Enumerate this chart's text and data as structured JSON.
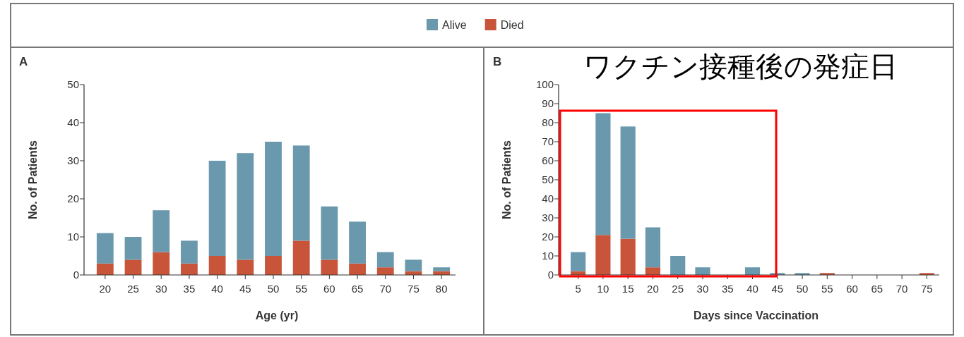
{
  "chart_data": [
    {
      "type": "bar",
      "title": "A",
      "xlabel": "Age (yr)",
      "ylabel": "No. of Patients",
      "stacked": true,
      "legend": "top",
      "categories": [
        "20",
        "25",
        "30",
        "35",
        "40",
        "45",
        "50",
        "55",
        "60",
        "65",
        "70",
        "75",
        "80"
      ],
      "series": [
        {
          "name": "Died",
          "color": "#c8553a",
          "values": [
            3,
            4,
            6,
            3,
            5,
            4,
            5,
            9,
            4,
            3,
            2,
            1,
            1
          ]
        },
        {
          "name": "Alive",
          "color": "#6a98ad",
          "values": [
            8,
            6,
            11,
            6,
            25,
            28,
            30,
            25,
            14,
            11,
            4,
            3,
            1
          ]
        }
      ],
      "ylim": [
        0,
        50
      ],
      "yticks": [
        0,
        10,
        20,
        30,
        40,
        50
      ]
    },
    {
      "type": "bar",
      "title": "B",
      "xlabel": "Days since Vaccination",
      "ylabel": "No. of Patients",
      "stacked": true,
      "annotations": [
        "ワクチン接種後の発症日"
      ],
      "categories": [
        "5",
        "10",
        "15",
        "20",
        "25",
        "30",
        "35",
        "40",
        "45",
        "50",
        "55",
        "60",
        "65",
        "70",
        "75"
      ],
      "series": [
        {
          "color": "#c8553a",
          "values": [
            2,
            21,
            19,
            4,
            0,
            0,
            0,
            0,
            0,
            0,
            1,
            0,
            0,
            0,
            1
          ]
        },
        {
          "color": "#6a98ad",
          "values": [
            10,
            64,
            59,
            21,
            10,
            4,
            0,
            4,
            1,
            1,
            0,
            0,
            0,
            0,
            0
          ]
        }
      ],
      "ylim": [
        0,
        100
      ],
      "yticks": [
        0,
        10,
        20,
        30,
        40,
        50,
        60,
        70,
        80,
        90,
        100
      ]
    }
  ]
}
